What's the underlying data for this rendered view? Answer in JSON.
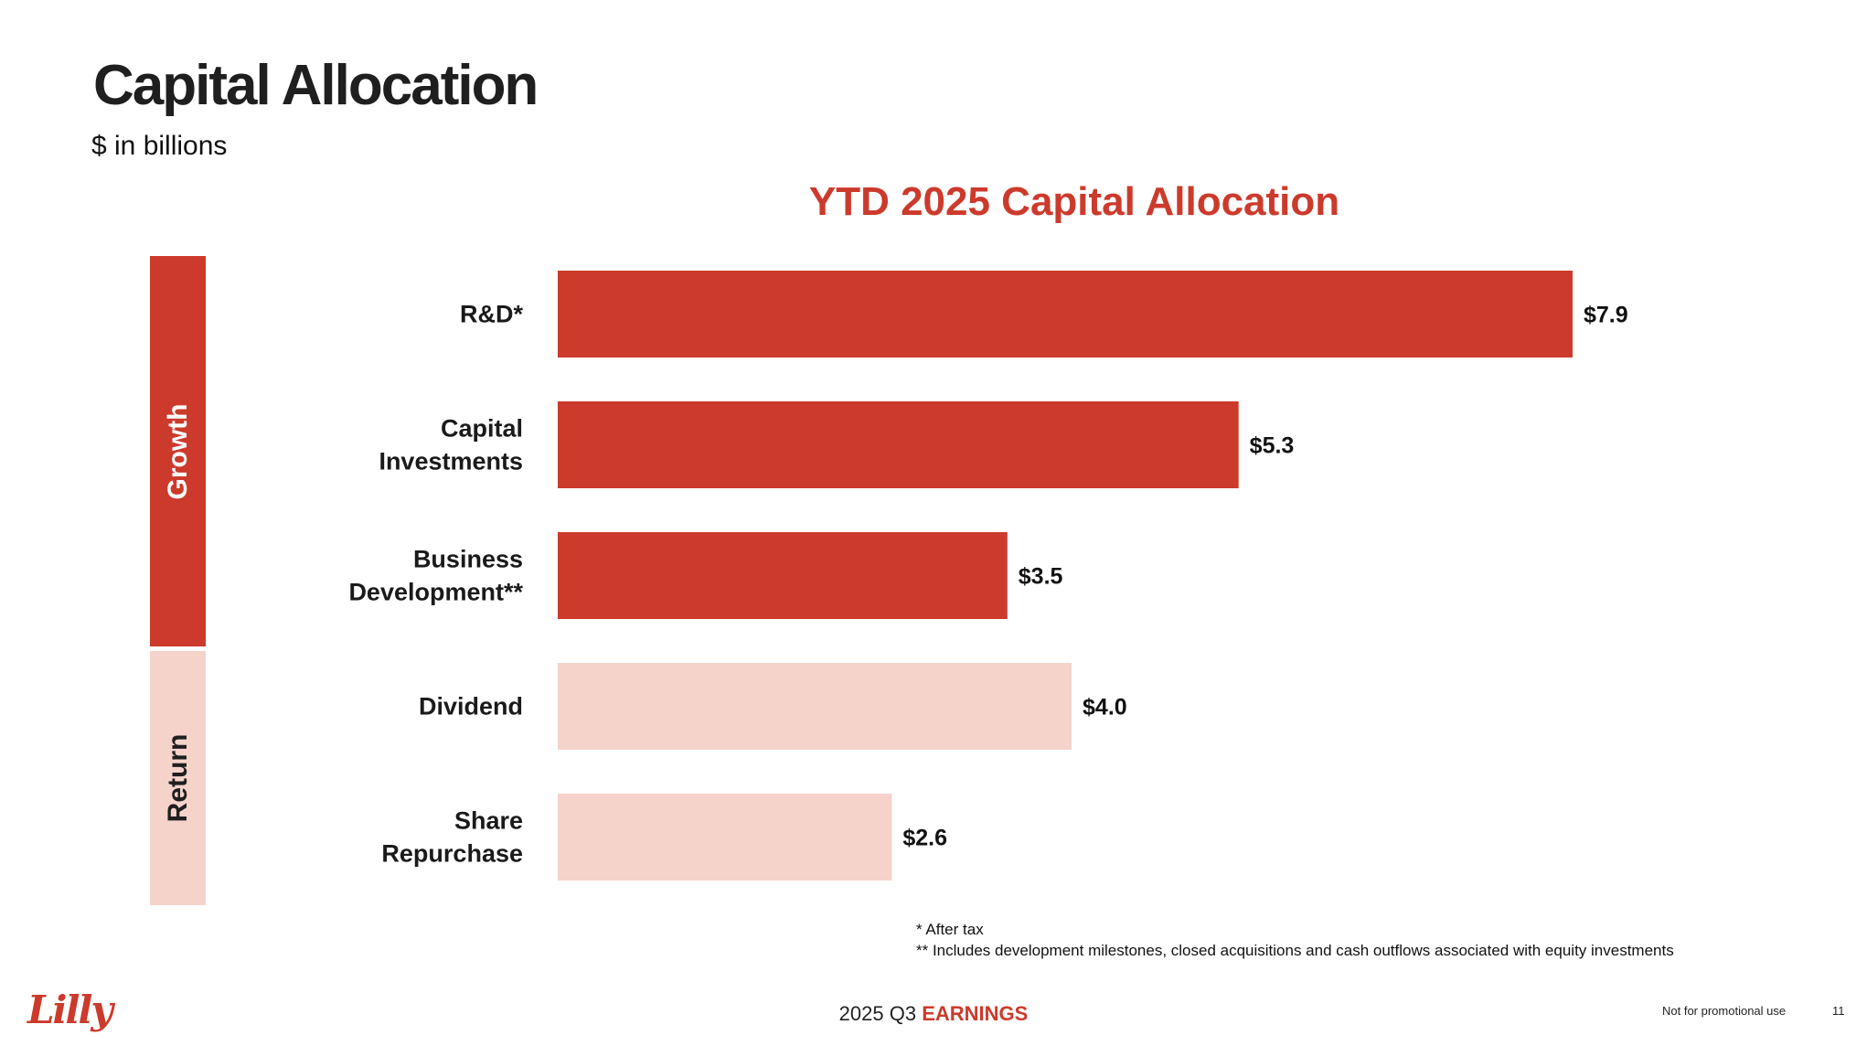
{
  "header": {
    "title": "Capital Allocation",
    "units": "$ in billions"
  },
  "groups": [
    {
      "label": "Growth",
      "color": "#cc3a2b",
      "text_color": "#ffffff"
    },
    {
      "label": "Return",
      "color": "#f5d3cb",
      "text_color": "#1f1f1f"
    }
  ],
  "chart_data": {
    "type": "bar",
    "orientation": "horizontal",
    "title": "YTD 2025 Capital Allocation",
    "xlabel": "",
    "ylabel": "",
    "xlim": [
      0,
      7.9
    ],
    "grid": false,
    "categories": [
      [
        "R&D*"
      ],
      [
        "Capital",
        "Investments"
      ],
      [
        "Business",
        "Development**"
      ],
      [
        "Dividend"
      ],
      [
        "Share",
        "Repurchase"
      ]
    ],
    "values": [
      7.9,
      5.3,
      3.5,
      4.0,
      2.6
    ],
    "data_labels": [
      "$7.9",
      "$5.3",
      "$3.5",
      "$4.0",
      "$2.6"
    ],
    "bar_colors": [
      "#cc3a2b",
      "#cc3a2b",
      "#cc3a2b",
      "#f5d3cb",
      "#f5d3cb"
    ]
  },
  "footnotes": [
    "* After tax",
    "** Includes development milestones, closed acquisitions and cash outflows associated with equity investments"
  ],
  "footer": {
    "earnings_prefix": "2025 Q3",
    "earnings_accent": "EARNINGS",
    "disclaimer": "Not for promotional use",
    "page_number": "11",
    "logo_text": "Lilly"
  }
}
